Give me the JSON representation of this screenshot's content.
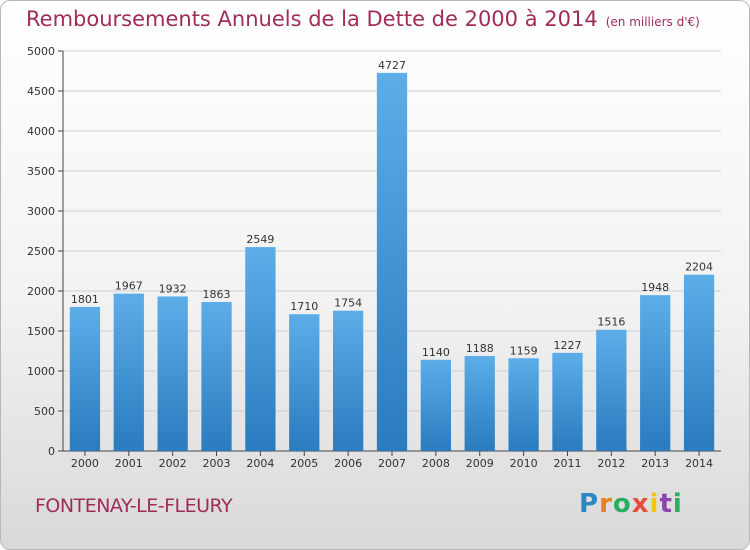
{
  "header": {
    "title": "Remboursements Annuels de la Dette de 2000 à 2014",
    "subtitle": "(en milliers d'€)"
  },
  "footer": {
    "city": "FONTENAY-LE-FLEURY",
    "logo_letters": [
      "P",
      "r",
      "o",
      "x",
      "i",
      "t",
      "i"
    ],
    "logo_colors": [
      "#2e86c1",
      "#e67e22",
      "#27ae60",
      "#e74c3c",
      "#f1c40f",
      "#8e44ad",
      "#27ae60"
    ]
  },
  "chart_data": {
    "type": "bar",
    "categories": [
      "2000",
      "2001",
      "2002",
      "2003",
      "2004",
      "2005",
      "2006",
      "2007",
      "2008",
      "2009",
      "2010",
      "2011",
      "2012",
      "2013",
      "2014"
    ],
    "values": [
      1801,
      1967,
      1932,
      1863,
      2549,
      1710,
      1754,
      4727,
      1140,
      1188,
      1159,
      1227,
      1516,
      1948,
      2204
    ],
    "ylim": [
      0,
      5000
    ],
    "yticks": [
      0,
      500,
      1000,
      1500,
      2000,
      2500,
      3000,
      3500,
      4000,
      4500,
      5000
    ],
    "grid": true,
    "bar_color_top": "#5dade8",
    "bar_color_bottom": "#2a7bbf"
  }
}
